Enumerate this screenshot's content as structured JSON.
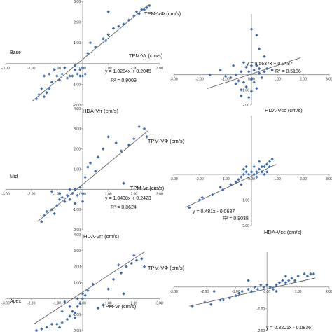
{
  "row_labels": [
    "Base",
    "Mid",
    "Apex"
  ],
  "chart_data": [
    {
      "type": "scatter",
      "title": "",
      "row": "Base",
      "xlabel": "TPM-Vr (cm/s)",
      "ylabel": "",
      "xlim": [
        -3,
        3
      ],
      "ylim": [
        -2,
        3
      ],
      "xticks": [
        "-3.00",
        "-2.00",
        "-1.00",
        "0.00",
        "1.00",
        "2.00",
        "3.00"
      ],
      "yticks": [
        "3.00",
        "2.00",
        "1.00",
        "-1.00",
        "-2.00"
      ],
      "equation": "y = 1.0284x + 0.2045",
      "r2": "R² = 0.9009",
      "trendline": {
        "slope": 1.0284,
        "intercept": 0.2045,
        "x_range": [
          -1.95,
          2.55
        ]
      },
      "series": [
        {
          "color": "#3b6fb6",
          "points": [
            [
              -1.8,
              -1.7
            ],
            [
              -1.7,
              -1.5
            ],
            [
              -1.5,
              -1.6
            ],
            [
              -1.4,
              -1.4
            ],
            [
              -1.6,
              -1.2
            ],
            [
              -1.3,
              -1.2
            ],
            [
              -1.2,
              -0.9
            ],
            [
              -1.5,
              -0.6
            ],
            [
              -1.3,
              -0.5
            ],
            [
              -1.0,
              -0.6
            ],
            [
              -0.9,
              -0.8
            ],
            [
              -0.8,
              -0.5
            ],
            [
              -0.6,
              -0.7
            ],
            [
              -0.5,
              -0.6
            ],
            [
              -0.4,
              -0.6
            ],
            [
              -0.3,
              -0.3
            ],
            [
              -0.2,
              -0.5
            ],
            [
              -0.1,
              -0.6
            ],
            [
              0.0,
              -0.6
            ],
            [
              -0.7,
              -0.2
            ],
            [
              -1.1,
              -0.3
            ],
            [
              -0.3,
              -0.1
            ],
            [
              -0.1,
              -0.3
            ],
            [
              0.2,
              0.5
            ],
            [
              0.3,
              1.0
            ],
            [
              0.5,
              0.8
            ],
            [
              0.8,
              1.2
            ],
            [
              0.9,
              1.1
            ],
            [
              1.0,
              1.4
            ],
            [
              1.2,
              1.7
            ],
            [
              1.0,
              2.5
            ],
            [
              1.6,
              1.9
            ],
            [
              1.8,
              2.1
            ],
            [
              2.0,
              2.3
            ],
            [
              2.2,
              2.4
            ],
            [
              2.3,
              2.6
            ],
            [
              2.4,
              2.6
            ],
            [
              2.5,
              2.7
            ],
            [
              2.6,
              2.8
            ],
            [
              2.1,
              2.5
            ],
            [
              1.4,
              1.8
            ],
            [
              0.0,
              -0.2
            ],
            [
              0.1,
              -0.5
            ]
          ]
        }
      ]
    },
    {
      "type": "scatter",
      "title": "",
      "row": "Base",
      "xlabel": "TPM-VΦ (cm/s)",
      "ylabel": "HDA-Vcc (cm/s)",
      "xlim": [
        -3,
        3
      ],
      "ylim": [
        -2,
        4
      ],
      "xticks": [
        "-3.00",
        "-2.00",
        "-1.00",
        "0.00",
        "1.00",
        "2.00",
        "3.00"
      ],
      "yticks": [
        "-1.00",
        "-2.00"
      ],
      "equation": "y = 0.5637x + 0.0487",
      "r2": "R² = 0.5186",
      "trendline": {
        "slope": 0.5637,
        "intercept": 0.0487,
        "x_range": [
          -1.7,
          1.9
        ]
      },
      "series": [
        {
          "color": "#3b6fb6",
          "points": [
            [
              0.0,
              3.0
            ],
            [
              0.2,
              2.6
            ],
            [
              0.3,
              1.7
            ],
            [
              0.5,
              1.2
            ],
            [
              -0.3,
              0.8
            ],
            [
              -0.2,
              0.5
            ],
            [
              0.0,
              0.6
            ],
            [
              0.1,
              0.3
            ],
            [
              0.2,
              0.6
            ],
            [
              0.3,
              0.4
            ],
            [
              -0.4,
              0.2
            ],
            [
              -0.6,
              0.0
            ],
            [
              -0.8,
              -0.2
            ],
            [
              -1.2,
              0.3
            ],
            [
              -1.0,
              -0.1
            ],
            [
              -0.5,
              -0.4
            ],
            [
              -0.3,
              -0.5
            ],
            [
              -0.2,
              -0.8
            ],
            [
              0.0,
              -1.1
            ],
            [
              0.1,
              -0.5
            ],
            [
              0.2,
              -0.9
            ],
            [
              -0.4,
              -1.0
            ],
            [
              -0.6,
              -0.6
            ],
            [
              0.4,
              -0.2
            ],
            [
              0.5,
              0.2
            ],
            [
              0.6,
              0.4
            ],
            [
              -0.1,
              -1.5
            ],
            [
              -0.4,
              -1.4
            ],
            [
              -1.6,
              0.0
            ],
            [
              0.8,
              0.3
            ],
            [
              0.3,
              0.1
            ],
            [
              -0.1,
              0.2
            ],
            [
              -0.7,
              0.6
            ],
            [
              0.0,
              -0.3
            ]
          ]
        }
      ]
    },
    {
      "type": "scatter",
      "title": "",
      "row": "Mid",
      "xlabel": "TPM-Vr (cm/s)",
      "ylabel": "HDA-Vrr (cm/s)",
      "xlim": [
        -3,
        3
      ],
      "ylim": [
        -2,
        4
      ],
      "xticks": [
        "-3.00",
        "-2.00",
        "-1.00",
        "0.00",
        "1.00",
        "2.00",
        "3.00"
      ],
      "yticks": [
        "4.00",
        "3.00",
        "2.00",
        "1.00",
        "-1.00",
        "-2.00"
      ],
      "equation": "y = 1.0438x + 0.2423",
      "r2": "R² = 0.8624",
      "trendline": {
        "slope": 1.0438,
        "intercept": 0.2423,
        "x_range": [
          -1.75,
          2.55
        ]
      },
      "series": [
        {
          "color": "#3b6fb6",
          "points": [
            [
              -1.6,
              -1.6
            ],
            [
              -1.5,
              -1.3
            ],
            [
              -1.4,
              -1.1
            ],
            [
              -1.2,
              -1.0
            ],
            [
              -1.1,
              -1.2
            ],
            [
              -1.0,
              -0.8
            ],
            [
              -0.9,
              -0.5
            ],
            [
              -0.8,
              -0.4
            ],
            [
              -0.7,
              -0.6
            ],
            [
              -0.6,
              -0.3
            ],
            [
              -0.5,
              -0.5
            ],
            [
              -0.4,
              -0.2
            ],
            [
              -0.3,
              0.0
            ],
            [
              -0.2,
              -0.3
            ],
            [
              -0.1,
              0.1
            ],
            [
              0.0,
              -0.2
            ],
            [
              -1.2,
              -0.1
            ],
            [
              -0.9,
              -0.2
            ],
            [
              -0.3,
              -0.7
            ],
            [
              0.0,
              -0.6
            ],
            [
              0.1,
              0.6
            ],
            [
              0.2,
              1.1
            ],
            [
              0.3,
              1.3
            ],
            [
              0.6,
              1.6
            ],
            [
              0.8,
              2.0
            ],
            [
              1.0,
              2.6
            ],
            [
              1.5,
              1.9
            ],
            [
              1.8,
              2.2
            ],
            [
              2.0,
              2.5
            ],
            [
              2.2,
              3.1
            ],
            [
              2.4,
              3.0
            ],
            [
              2.5,
              2.6
            ],
            [
              1.6,
              0.3
            ],
            [
              1.3,
              2.3
            ],
            [
              0.5,
              0.9
            ],
            [
              -0.5,
              0.0
            ]
          ]
        }
      ]
    },
    {
      "type": "scatter",
      "title": "",
      "row": "Mid",
      "xlabel": "TPM-VΦ (cm/s)",
      "ylabel": "HDA-Vcc (cm/s)",
      "xlim": [
        -3,
        3
      ],
      "ylim": [
        -2,
        2.3
      ],
      "xticks": [
        "-3.00",
        "-2.00",
        "-1.00",
        "0.00",
        "1.00",
        "2.00",
        "3.00"
      ],
      "yticks": [
        "-1.00",
        "-2.00"
      ],
      "equation": "y = 0.481x - 0.0637",
      "r2": "R² = 0.9038",
      "trendline": {
        "slope": 0.481,
        "intercept": -0.0637,
        "x_range": [
          -2.55,
          0.95
        ]
      },
      "series": [
        {
          "color": "#3b6fb6",
          "points": [
            [
              -2.4,
              -1.3
            ],
            [
              -2.0,
              -1.0
            ],
            [
              -1.9,
              -0.9
            ],
            [
              -1.5,
              -0.8
            ],
            [
              -1.2,
              -0.5
            ],
            [
              -1.1,
              -0.6
            ],
            [
              -0.8,
              -0.4
            ],
            [
              -0.6,
              -0.3
            ],
            [
              -0.5,
              -0.2
            ],
            [
              -0.4,
              -0.1
            ],
            [
              -0.3,
              0.0
            ],
            [
              -0.2,
              0.1
            ],
            [
              -0.1,
              0.0
            ],
            [
              0.0,
              0.1
            ],
            [
              0.1,
              0.0
            ],
            [
              0.2,
              0.1
            ],
            [
              0.3,
              0.2
            ],
            [
              0.4,
              0.1
            ],
            [
              0.5,
              0.3
            ],
            [
              0.6,
              0.4
            ],
            [
              0.7,
              0.5
            ],
            [
              0.8,
              0.6
            ],
            [
              0.3,
              0.5
            ],
            [
              0.1,
              0.3
            ],
            [
              -0.2,
              0.3
            ],
            [
              0.4,
              0.3
            ],
            [
              0.6,
              0.1
            ],
            [
              0.2,
              -0.1
            ],
            [
              -0.4,
              -0.4
            ],
            [
              0.5,
              0.0
            ],
            [
              0.7,
              0.3
            ],
            [
              -0.3,
              0.2
            ]
          ]
        }
      ]
    },
    {
      "type": "scatter",
      "title": "",
      "row": "Apex",
      "xlabel": "TPM-Vr (cm/s)",
      "ylabel": "HDA-Vrr (cm/s)",
      "xlim": [
        -3,
        3
      ],
      "ylim": [
        -2,
        4
      ],
      "xticks": [
        "-3.00",
        "-2.00",
        "-1.00",
        "0.00",
        "1.00",
        "2.00",
        "3.00"
      ],
      "yticks": [
        "4.00",
        "3.00",
        "2.00",
        "1.00",
        "-1.00",
        "-2.00"
      ],
      "equation": "",
      "r2": "",
      "trendline": {
        "slope": 1.05,
        "intercept": 0.4,
        "x_range": [
          -1.9,
          2.4
        ]
      },
      "series": [
        {
          "color": "#3b6fb6",
          "points": [
            [
              -1.8,
              -2.0
            ],
            [
              -1.6,
              -1.9
            ],
            [
              -1.4,
              -1.8
            ],
            [
              -1.2,
              -1.6
            ],
            [
              -1.0,
              -1.6
            ],
            [
              -0.9,
              -1.8
            ],
            [
              -0.8,
              -1.5
            ],
            [
              -0.6,
              -1.3
            ],
            [
              -0.5,
              -1.1
            ],
            [
              -0.4,
              -0.8
            ],
            [
              -0.3,
              -0.9
            ],
            [
              -0.2,
              -0.5
            ],
            [
              -0.1,
              -0.3
            ],
            [
              0.0,
              0.0
            ],
            [
              -0.5,
              -0.5
            ],
            [
              -0.7,
              -0.2
            ],
            [
              -0.8,
              -0.8
            ],
            [
              -0.3,
              -1.2
            ],
            [
              0.1,
              0.2
            ],
            [
              0.2,
              0.5
            ],
            [
              -0.2,
              0.0
            ],
            [
              0.0,
              0.3
            ],
            [
              0.6,
              -0.6
            ],
            [
              0.8,
              -0.4
            ],
            [
              1.0,
              0.6
            ],
            [
              1.2,
              1.2
            ],
            [
              1.5,
              1.6
            ],
            [
              1.7,
              2.0
            ],
            [
              1.9,
              2.2
            ],
            [
              2.1,
              2.4
            ],
            [
              2.3,
              2.5
            ],
            [
              2.0,
              2.7
            ],
            [
              1.4,
              2.1
            ],
            [
              2.4,
              2.0
            ],
            [
              0.4,
              0.9
            ],
            [
              1.6,
              0.3
            ]
          ]
        }
      ]
    },
    {
      "type": "scatter",
      "title": "",
      "row": "Apex",
      "xlabel": "TPM-VΦ (cm/s)",
      "ylabel": "",
      "xlim": [
        -3,
        2
      ],
      "ylim": [
        -2,
        1.6
      ],
      "xticks": [
        "-3.00",
        "-2.00",
        "-1.00",
        "0.00",
        "1.00",
        "2.00"
      ],
      "yticks": [
        "-1.00",
        "-2.00"
      ],
      "equation": "y = 0.3201x - 0.0836",
      "r2": "",
      "trendline": {
        "slope": 0.3201,
        "intercept": -0.0836,
        "x_range": [
          -2.5,
          1.55
        ]
      },
      "series": [
        {
          "color": "#3b6fb6",
          "points": [
            [
              -2.4,
              -0.9
            ],
            [
              -2.0,
              -0.7
            ],
            [
              -1.8,
              -0.8
            ],
            [
              -1.5,
              -0.6
            ],
            [
              -1.4,
              -0.6
            ],
            [
              -1.2,
              -0.5
            ],
            [
              -1.0,
              -0.4
            ],
            [
              -0.9,
              -0.3
            ],
            [
              -0.8,
              -0.2
            ],
            [
              -0.6,
              -0.1
            ],
            [
              -0.5,
              -0.2
            ],
            [
              -0.4,
              0.0
            ],
            [
              -0.3,
              -0.1
            ],
            [
              -0.2,
              0.1
            ],
            [
              -0.1,
              0.0
            ],
            [
              0.0,
              0.1
            ],
            [
              0.1,
              0.0
            ],
            [
              0.2,
              -0.1
            ],
            [
              0.3,
              0.1
            ],
            [
              0.4,
              0.2
            ],
            [
              0.5,
              0.3
            ],
            [
              0.6,
              0.2
            ],
            [
              0.7,
              0.3
            ],
            [
              0.8,
              0.4
            ],
            [
              0.9,
              0.3
            ],
            [
              1.0,
              0.5
            ],
            [
              1.2,
              0.6
            ],
            [
              1.3,
              0.5
            ],
            [
              1.4,
              0.6
            ],
            [
              1.5,
              0.6
            ],
            [
              0.6,
              0.5
            ],
            [
              0.3,
              -0.2
            ],
            [
              -1.7,
              -0.2
            ],
            [
              -0.6,
              0.3
            ]
          ]
        }
      ]
    }
  ]
}
